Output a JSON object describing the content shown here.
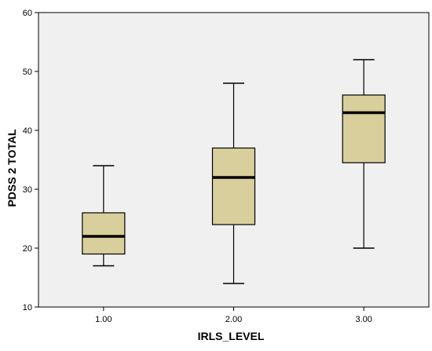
{
  "chart_data": {
    "type": "boxplot",
    "xlabel": "IRLS_LEVEL",
    "ylabel": "PDSS 2 TOTAL",
    "categories": [
      "1.00",
      "2.00",
      "3.00"
    ],
    "boxes": [
      {
        "category": "1.00",
        "min": 17,
        "q1": 19,
        "median": 22,
        "q3": 26,
        "max": 34
      },
      {
        "category": "2.00",
        "min": 14,
        "q1": 24,
        "median": 32,
        "q3": 37,
        "max": 48
      },
      {
        "category": "3.00",
        "min": 20,
        "q1": 34.5,
        "median": 43,
        "q3": 46,
        "max": 52
      }
    ],
    "ylim": [
      10,
      60
    ],
    "yticks": [
      "10",
      "20",
      "30",
      "40",
      "50",
      "60"
    ],
    "grid": false,
    "legend": "none",
    "colors": {
      "plot_background": "#f0f0f0",
      "box_fill": "#d8cf9c",
      "line": "#000000"
    }
  }
}
